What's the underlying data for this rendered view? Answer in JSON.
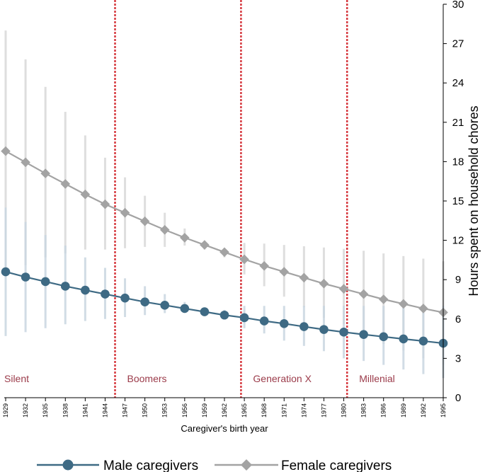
{
  "chart_data": {
    "type": "line",
    "xlabel": "Caregiver's birth year",
    "ylabel": "Hours spent on household chores",
    "ylim": [
      0,
      30
    ],
    "yticks": [
      0,
      3,
      6,
      9,
      12,
      15,
      18,
      21,
      24,
      27,
      30
    ],
    "x": [
      1929,
      1932,
      1935,
      1938,
      1941,
      1944,
      1947,
      1950,
      1953,
      1956,
      1959,
      1962,
      1965,
      1968,
      1971,
      1974,
      1977,
      1980,
      1983,
      1986,
      1989,
      1992,
      1995
    ],
    "series": [
      {
        "name": "Male caregivers",
        "color": "#3e6a84",
        "ci_color": "#c9d6e0",
        "values": [
          9.6,
          9.2,
          8.85,
          8.5,
          8.2,
          7.9,
          7.6,
          7.3,
          7.05,
          6.8,
          6.55,
          6.3,
          6.1,
          5.85,
          5.65,
          5.42,
          5.2,
          5.0,
          4.82,
          4.65,
          4.48,
          4.32,
          4.15
        ],
        "ci_low": [
          4.7,
          5.0,
          5.3,
          5.6,
          5.85,
          6.0,
          6.15,
          6.3,
          6.45,
          6.5,
          6.3,
          6.0,
          5.3,
          4.9,
          4.35,
          3.95,
          3.55,
          3.0,
          2.8,
          2.5,
          2.15,
          1.8,
          1.5
        ],
        "ci_high": [
          14.5,
          13.4,
          12.4,
          11.6,
          10.7,
          9.9,
          9.1,
          8.5,
          7.9,
          7.3,
          6.85,
          6.7,
          7.0,
          7.0,
          7.0,
          7.0,
          7.0,
          7.0,
          7.0,
          7.0,
          7.0,
          7.0,
          7.0
        ]
      },
      {
        "name": "Female caregivers",
        "color": "#a3a3a3",
        "ci_color": "#d8d8d8",
        "values": [
          18.8,
          17.95,
          17.1,
          16.3,
          15.5,
          14.75,
          14.1,
          13.45,
          12.8,
          12.2,
          11.65,
          11.1,
          10.55,
          10.05,
          9.6,
          9.15,
          8.7,
          8.3,
          7.9,
          7.5,
          7.15,
          6.8,
          6.5
        ],
        "ci_low": [
          9.6,
          10.1,
          10.7,
          11.0,
          11.3,
          11.3,
          11.4,
          11.5,
          11.5,
          11.6,
          11.3,
          10.7,
          9.4,
          8.5,
          7.7,
          6.9,
          6.1,
          5.6,
          4.7,
          4.1,
          3.6,
          3.0,
          2.5
        ],
        "ci_high": [
          28.0,
          25.8,
          23.7,
          21.8,
          20.0,
          18.3,
          16.8,
          15.4,
          14.1,
          12.9,
          11.8,
          11.3,
          11.8,
          11.75,
          11.65,
          11.55,
          11.45,
          11.35,
          11.2,
          11.0,
          10.8,
          10.6,
          10.4
        ]
      }
    ],
    "generations": [
      {
        "label": "Silent",
        "start": 1929
      },
      {
        "label": "Boomers",
        "start": 1945.5
      },
      {
        "label": "Generation X",
        "start": 1964.5
      },
      {
        "label": "Millenial",
        "start": 1980.5
      }
    ],
    "generation_dividers": [
      1945.5,
      1964.5,
      1980.5
    ],
    "generation_color": "#9b3b4a",
    "divider_color": "#d6393f",
    "legend_position": "bottom"
  }
}
